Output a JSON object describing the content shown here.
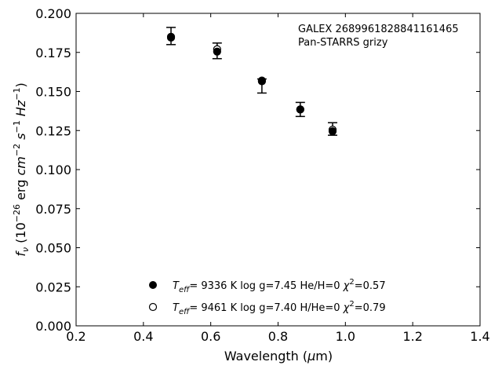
{
  "chart_data": {
    "type": "scatter",
    "annotation": {
      "line1": "GALEX 2689961828841161465",
      "line2": "Pan-STARRS grizy"
    },
    "xlabel": {
      "main": "Wavelength (",
      "mu": "μ",
      "unit": "m)"
    },
    "ylabel": {
      "f": "f",
      "nu": "ν",
      "a": " (10",
      "e1": "−26",
      "b": " erg ",
      "cm": "cm",
      "e2": "−2",
      "s": " s",
      "e3": "−1",
      "hz": " Hz",
      "e4": "−1",
      "c": ")"
    },
    "xlim": [
      0.2,
      1.4
    ],
    "ylim": [
      0.0,
      0.2
    ],
    "xticks": [
      "0.2",
      "0.4",
      "0.6",
      "0.8",
      "1.0",
      "1.2",
      "1.4"
    ],
    "yticks": [
      "0.000",
      "0.025",
      "0.050",
      "0.075",
      "0.100",
      "0.125",
      "0.150",
      "0.175",
      "0.200"
    ],
    "series": [
      {
        "marker": "filled",
        "x": [
          0.482,
          0.619,
          0.752,
          0.866,
          0.962
        ],
        "y": [
          0.1845,
          0.1755,
          0.1565,
          0.1385,
          0.1245
        ]
      },
      {
        "marker": "open",
        "x": [
          0.482,
          0.619,
          0.752,
          0.866,
          0.962
        ],
        "y": [
          0.185,
          0.177,
          0.157,
          0.1385,
          0.1255
        ]
      }
    ],
    "errorbars": {
      "x": [
        0.482,
        0.619,
        0.752,
        0.866,
        0.962
      ],
      "lo": [
        0.18,
        0.171,
        0.149,
        0.134,
        0.122
      ],
      "hi": [
        0.191,
        0.181,
        0.158,
        0.143,
        0.13
      ]
    },
    "legend": {
      "placement": "lower-center",
      "entries": [
        {
          "marker": "filled",
          "teff": "9336",
          "logg": "7.45",
          "comp": "He/H=0",
          "chi2": "0.57"
        },
        {
          "marker": "open",
          "teff": "9461",
          "logg": "7.40",
          "comp": "H/He=0",
          "chi2": "0.79"
        }
      ],
      "T": "T",
      "eff": "eff",
      "eq": "=  ",
      "K": " K  log g=",
      "chi": "χ",
      "sq": "2",
      "chieq": "="
    }
  }
}
